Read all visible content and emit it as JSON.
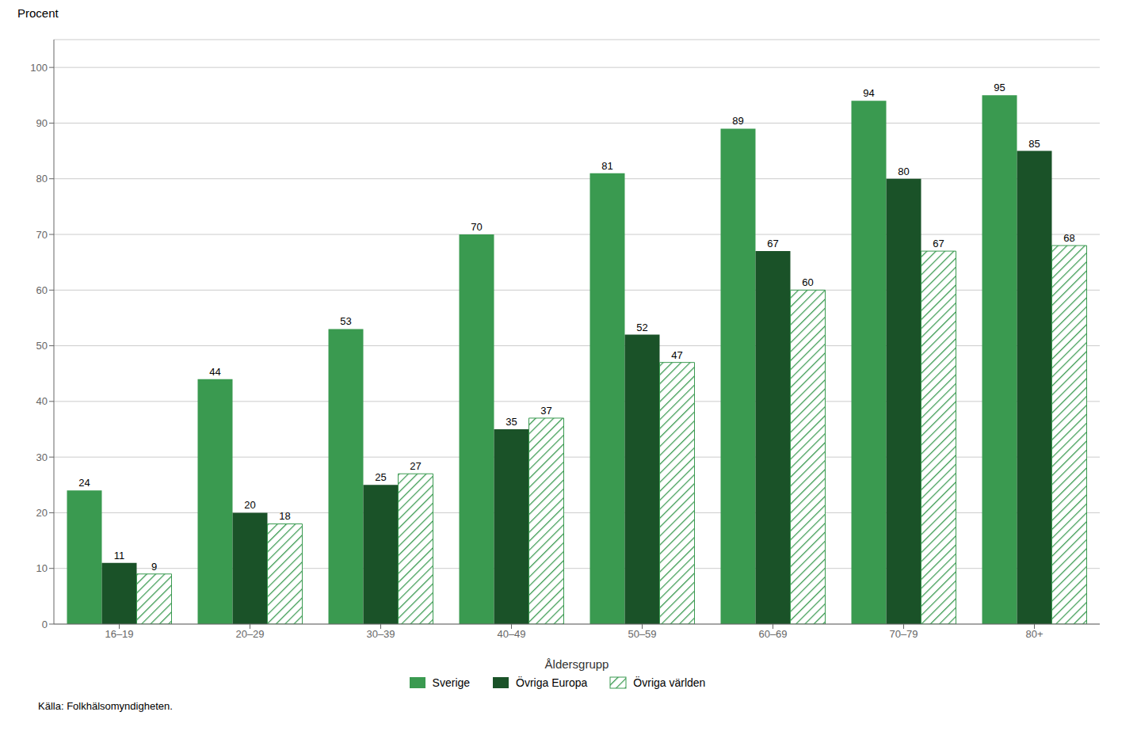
{
  "chart_data": {
    "type": "bar",
    "xlabel": "Åldersgrupp",
    "ylabel": "Procent",
    "source": "Källa: Folkhälsomyndigheten.",
    "categories": [
      "16–19",
      "20–29",
      "30–39",
      "40–49",
      "50–59",
      "60–69",
      "70–79",
      "80+"
    ],
    "series": [
      {
        "name": "Sverige",
        "color": "#3a9a50",
        "values": [
          24,
          44,
          53,
          70,
          81,
          89,
          94,
          95
        ]
      },
      {
        "name": "Övriga Europa",
        "color": "#1a5228",
        "values": [
          11,
          20,
          25,
          35,
          52,
          67,
          80,
          85
        ]
      },
      {
        "name": "Övriga världen",
        "color": "#3a9a50",
        "values": [
          9,
          18,
          27,
          37,
          47,
          60,
          67,
          68
        ]
      }
    ],
    "ylim": [
      0,
      105
    ],
    "yticks": [
      0,
      10,
      20,
      30,
      40,
      50,
      60,
      70,
      80,
      90,
      100
    ],
    "grid": true,
    "legend": "bottom",
    "data_labels": true
  }
}
